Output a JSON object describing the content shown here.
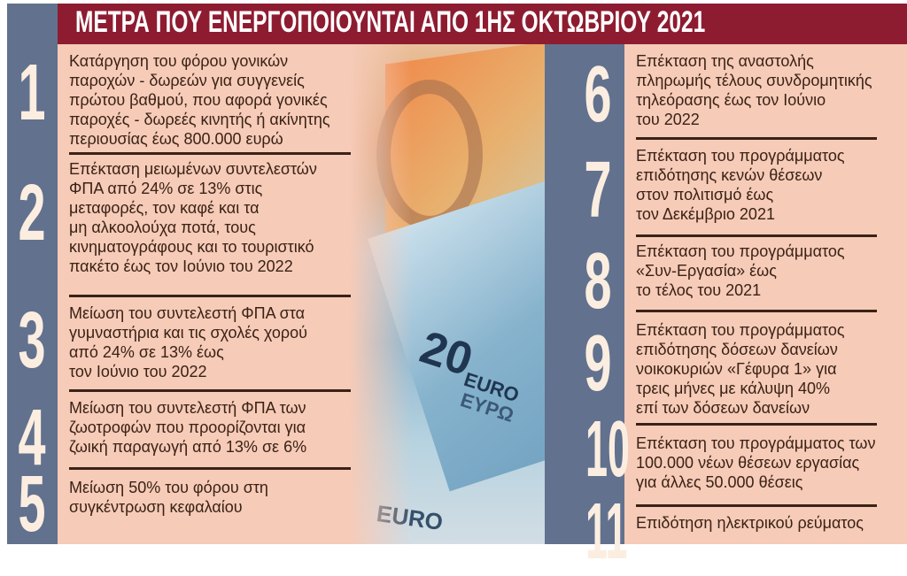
{
  "title": "ΜΕΤΡΑ ΠΟΥ ΕΝΕΡΓΟΠΟΙΟΥΝΤΑΙ ΑΠΟ 1ΗΣ ΟΚΤΩΒΡΙΟΥ 2021",
  "colors": {
    "header": "#8e1c31",
    "strip": "#62718e",
    "panel": "#f6cbb8",
    "text": "#3a2216",
    "number": "#fbeee0"
  },
  "banknote": {
    "value": "20",
    "currency": "EURO",
    "currency_alt": "ΕΥΡΩ"
  },
  "items": [
    {
      "number": "1",
      "lines": [
        "Κατάργηση του φόρου γονικών",
        "παροχών - δωρεών για συγγενείς",
        "πρώτου βαθμού, που αφορά γονικές",
        "παροχές - δωρεές κινητής ή ακίνητης",
        "περιουσίας έως 800.000 ευρώ"
      ]
    },
    {
      "number": "2",
      "lines": [
        "Επέκταση μειωμένων συντελεστών",
        "ΦΠΑ από 24% σε 13% στις",
        "μεταφορές, τον καφέ και τα",
        "μη αλκοολούχα ποτά, τους",
        "κινηματογράφους και το τουριστικό",
        "πακέτο έως τον Ιούνιο του 2022"
      ]
    },
    {
      "number": "3",
      "lines": [
        "Μείωση του συντελεστή ΦΠΑ στα",
        "γυμναστήρια και τις σχολές χορού",
        "από 24% σε 13% έως",
        "τον Ιούνιο του 2022"
      ]
    },
    {
      "number": "4",
      "lines": [
        "Μείωση του συντελεστή ΦΠΑ των",
        "ζωοτροφών που προορίζονται για",
        "ζωική παραγωγή από 13% σε 6%"
      ]
    },
    {
      "number": "5",
      "lines": [
        "Μείωση 50% του φόρου στη",
        "συγκέντρωση κεφαλαίου"
      ]
    },
    {
      "number": "6",
      "lines": [
        "Επέκταση της αναστολής",
        "πληρωμής τέλους συνδρομητικής",
        "τηλεόρασης έως τον Ιούνιο",
        "του 2022"
      ]
    },
    {
      "number": "7",
      "lines": [
        "Επέκταση του προγράμματος",
        "επιδότησης κενών θέσεων",
        "στον πολιτισμό έως",
        "τον Δεκέμβριο 2021"
      ]
    },
    {
      "number": "8",
      "lines": [
        "Επέκταση του προγράμματος",
        "«Συν-Εργασία» έως",
        "το τέλος του 2021"
      ]
    },
    {
      "number": "9",
      "lines": [
        "Επέκταση του προγράμματος",
        "επιδότησης δόσεων δανείων",
        "νοικοκυριών «Γέφυρα 1» για",
        "τρεις μήνες με κάλυψη 40%",
        "επί των δόσεων δανείων"
      ]
    },
    {
      "number": "10",
      "lines": [
        "Επέκταση του προγράμματος των",
        "100.000 νέων θέσεων εργασίας",
        "για άλλες 50.000 θέσεις"
      ]
    },
    {
      "number": "11",
      "lines": [
        "Επιδότηση ηλεκτρικού ρεύματος"
      ]
    }
  ]
}
